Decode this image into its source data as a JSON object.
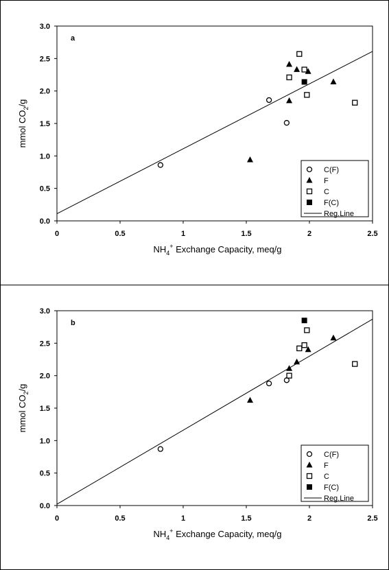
{
  "chart_data": [
    {
      "type": "scatter",
      "panel_label": "a",
      "xlabel": "NH4+ Exchange Capacity, meq/g",
      "ylabel": "mmol CO2/g",
      "xlim": [
        0,
        2.5
      ],
      "ylim": [
        0,
        3.0
      ],
      "x_ticks": [
        "0",
        "0.5",
        "1",
        "1.5",
        "2",
        "2.5"
      ],
      "y_ticks": [
        "0.0",
        "0.5",
        "1.0",
        "1.5",
        "2.0",
        "2.5",
        "3.0"
      ],
      "legend_position": "bottom-right",
      "series": [
        {
          "name": "C(F)",
          "marker": "open-circle",
          "points": [
            [
              0.82,
              0.86
            ],
            [
              1.68,
              1.86
            ],
            [
              1.82,
              1.51
            ]
          ]
        },
        {
          "name": "F",
          "marker": "filled-triangle",
          "points": [
            [
              1.53,
              0.94
            ],
            [
              1.84,
              1.85
            ],
            [
              1.84,
              2.41
            ],
            [
              1.9,
              2.33
            ],
            [
              1.99,
              2.3
            ],
            [
              2.19,
              2.14
            ]
          ]
        },
        {
          "name": "C",
          "marker": "open-square",
          "points": [
            [
              1.84,
              2.21
            ],
            [
              1.92,
              2.57
            ],
            [
              1.96,
              2.33
            ],
            [
              1.98,
              1.94
            ],
            [
              2.36,
              1.82
            ]
          ]
        },
        {
          "name": "F(C)",
          "marker": "filled-square",
          "points": [
            [
              1.96,
              2.14
            ]
          ]
        }
      ],
      "regression_line": {
        "name": "Reg.Line",
        "intercept": 0.11,
        "slope": 1.0
      }
    },
    {
      "type": "scatter",
      "panel_label": "b",
      "xlabel": "NH4+ Exchange Capacity, meq/g",
      "ylabel": "mmol CO2/g",
      "xlim": [
        0,
        2.5
      ],
      "ylim": [
        0,
        3.0
      ],
      "x_ticks": [
        "0",
        "0.5",
        "1",
        "1.5",
        "2",
        "2.5"
      ],
      "y_ticks": [
        "0.0",
        "0.5",
        "1.0",
        "1.5",
        "2.0",
        "2.5",
        "3.0"
      ],
      "legend_position": "bottom-right",
      "series": [
        {
          "name": "C(F)",
          "marker": "open-circle",
          "points": [
            [
              0.82,
              0.87
            ],
            [
              1.68,
              1.88
            ],
            [
              1.82,
              1.93
            ]
          ]
        },
        {
          "name": "F",
          "marker": "filled-triangle",
          "points": [
            [
              1.53,
              1.62
            ],
            [
              1.84,
              2.11
            ],
            [
              1.9,
              2.21
            ],
            [
              1.99,
              2.4
            ],
            [
              2.19,
              2.58
            ]
          ]
        },
        {
          "name": "C",
          "marker": "open-square",
          "points": [
            [
              1.84,
              2.0
            ],
            [
              1.92,
              2.42
            ],
            [
              1.96,
              2.47
            ],
            [
              1.98,
              2.7
            ],
            [
              2.36,
              2.18
            ]
          ]
        },
        {
          "name": "F(C)",
          "marker": "filled-square",
          "points": [
            [
              1.96,
              2.85
            ]
          ]
        }
      ],
      "regression_line": {
        "name": "Reg.Line",
        "intercept": 0.02,
        "slope": 1.14
      }
    }
  ]
}
